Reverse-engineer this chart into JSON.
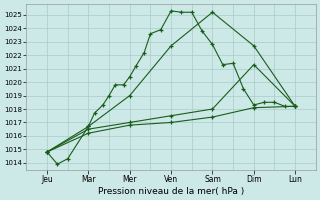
{
  "title": "",
  "xlabel": "Pression niveau de la mer( hPa )",
  "bg_color": "#cce9e7",
  "grid_color": "#aaccca",
  "line_color": "#1a5c1a",
  "ylim": [
    1013.5,
    1025.8
  ],
  "xlim": [
    0.0,
    14.0
  ],
  "yticks": [
    1014,
    1015,
    1016,
    1017,
    1018,
    1019,
    1020,
    1021,
    1022,
    1023,
    1024,
    1025
  ],
  "xtick_labels": [
    "Jeu",
    "Mar",
    "Mer",
    "Ven",
    "Sam",
    "Dim",
    "Lun"
  ],
  "xtick_positions": [
    1.0,
    3.0,
    5.0,
    7.0,
    9.0,
    11.0,
    13.0
  ],
  "day_vlines": [
    2.0,
    4.0,
    6.0,
    8.0,
    10.0,
    12.0
  ],
  "lines": [
    {
      "x": [
        1.0,
        1.5,
        2.0,
        3.0,
        3.3,
        3.7,
        4.0,
        4.3,
        4.7,
        5.0,
        5.3,
        5.7,
        6.0,
        6.5,
        7.0,
        7.5,
        8.0,
        8.5,
        9.0,
        9.5,
        10.0,
        10.5,
        11.0,
        11.5,
        12.0,
        12.5,
        13.0
      ],
      "y": [
        1014.8,
        1013.9,
        1014.3,
        1016.7,
        1017.7,
        1018.3,
        1019.0,
        1019.8,
        1019.8,
        1020.4,
        1021.2,
        1022.2,
        1023.6,
        1023.9,
        1025.3,
        1025.2,
        1025.2,
        1023.8,
        1022.8,
        1021.3,
        1021.4,
        1019.5,
        1018.3,
        1018.5,
        1018.5,
        1018.2,
        1018.2
      ]
    },
    {
      "x": [
        1.0,
        3.0,
        5.0,
        7.0,
        9.0,
        11.0,
        13.0
      ],
      "y": [
        1014.8,
        1016.7,
        1019.0,
        1022.7,
        1025.2,
        1022.7,
        1018.2
      ]
    },
    {
      "x": [
        1.0,
        3.0,
        5.0,
        7.0,
        9.0,
        11.0,
        13.0
      ],
      "y": [
        1014.8,
        1016.5,
        1017.0,
        1017.5,
        1018.0,
        1021.3,
        1018.2
      ]
    },
    {
      "x": [
        1.0,
        3.0,
        5.0,
        7.0,
        9.0,
        11.0,
        13.0
      ],
      "y": [
        1014.8,
        1016.2,
        1016.8,
        1017.0,
        1017.4,
        1018.1,
        1018.2
      ]
    }
  ]
}
